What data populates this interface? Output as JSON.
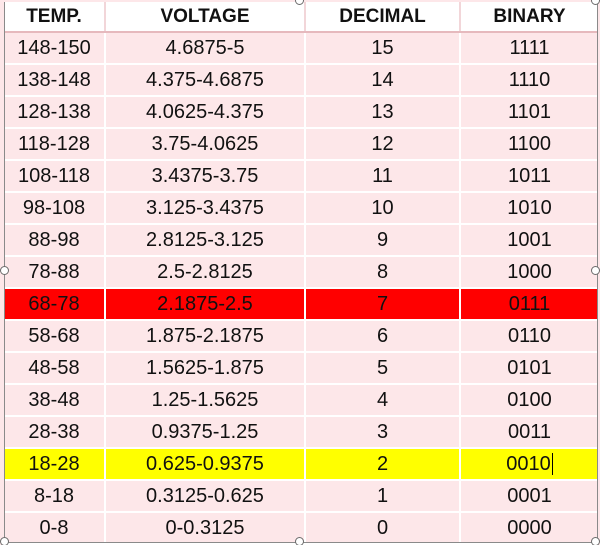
{
  "table": {
    "headers": [
      "TEMP.",
      "VOLTAGE",
      "DECIMAL",
      "BINARY"
    ],
    "rows": [
      {
        "temp": "148-150",
        "voltage": "4.6875-5",
        "decimal": "15",
        "binary": "1111"
      },
      {
        "temp": "138-148",
        "voltage": "4.375-4.6875",
        "decimal": "14",
        "binary": "1110"
      },
      {
        "temp": "128-138",
        "voltage": "4.0625-4.375",
        "decimal": "13",
        "binary": "1101"
      },
      {
        "temp": "118-128",
        "voltage": "3.75-4.0625",
        "decimal": "12",
        "binary": "1100"
      },
      {
        "temp": "108-118",
        "voltage": "3.4375-3.75",
        "decimal": "11",
        "binary": "1011"
      },
      {
        "temp": "98-108",
        "voltage": "3.125-3.4375",
        "decimal": "10",
        "binary": "1010"
      },
      {
        "temp": "88-98",
        "voltage": "2.8125-3.125",
        "decimal": "9",
        "binary": "1001"
      },
      {
        "temp": "78-88",
        "voltage": "2.5-2.8125",
        "decimal": "8",
        "binary": "1000"
      },
      {
        "temp": "68-78",
        "voltage": "2.1875-2.5",
        "decimal": "7",
        "binary": "0111"
      },
      {
        "temp": "58-68",
        "voltage": "1.875-2.1875",
        "decimal": "6",
        "binary": "0110"
      },
      {
        "temp": "48-58",
        "voltage": "1.5625-1.875",
        "decimal": "5",
        "binary": "0101"
      },
      {
        "temp": "38-48",
        "voltage": "1.25-1.5625",
        "decimal": "4",
        "binary": "0100"
      },
      {
        "temp": "28-38",
        "voltage": "0.9375-1.25",
        "decimal": "3",
        "binary": "0011"
      },
      {
        "temp": "18-28",
        "voltage": "0.625-0.9375",
        "decimal": "2",
        "binary": "0010"
      },
      {
        "temp": "8-18",
        "voltage": "0.3125-0.625",
        "decimal": "1",
        "binary": "0001"
      },
      {
        "temp": "0-8",
        "voltage": "0-0.3125",
        "decimal": "0",
        "binary": "0000"
      }
    ]
  },
  "colors": {
    "cell_background": "#fde7e9",
    "highlight_red": "#ff0000",
    "highlight_yellow": "#ffff00"
  }
}
